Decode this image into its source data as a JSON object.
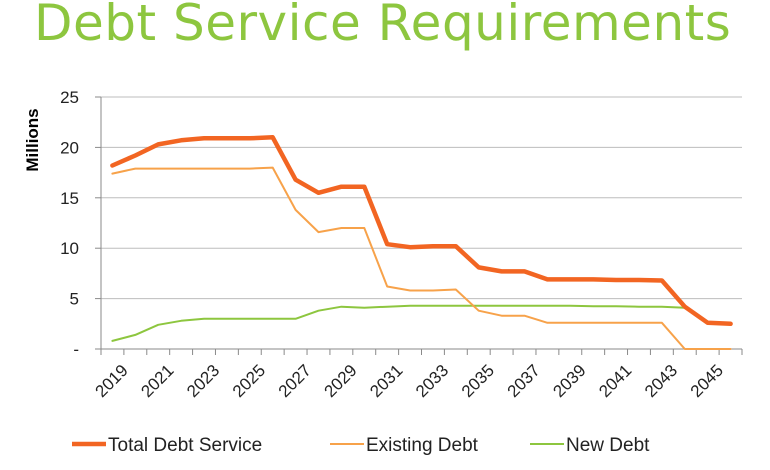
{
  "chart_data": {
    "type": "line",
    "title": "Debt Service Requirements",
    "xlabel": "",
    "ylabel": "Millions",
    "ylim": [
      0,
      25
    ],
    "yticks": [
      {
        "value": 0,
        "label": "-"
      },
      {
        "value": 5,
        "label": "5"
      },
      {
        "value": 10,
        "label": "10"
      },
      {
        "value": 15,
        "label": "15"
      },
      {
        "value": 20,
        "label": "20"
      },
      {
        "value": 25,
        "label": "25"
      }
    ],
    "x": [
      2019,
      2020,
      2021,
      2022,
      2023,
      2024,
      2025,
      2026,
      2027,
      2028,
      2029,
      2030,
      2031,
      2032,
      2033,
      2034,
      2035,
      2036,
      2037,
      2038,
      2039,
      2040,
      2041,
      2042,
      2043,
      2044,
      2045,
      2046
    ],
    "xtick_labels": [
      "2019",
      "2021",
      "2023",
      "2025",
      "2027",
      "2029",
      "2031",
      "2033",
      "2035",
      "2037",
      "2039",
      "2041",
      "2043",
      "2045"
    ],
    "grid": true,
    "legend_position": "bottom",
    "series": [
      {
        "name": "Total Debt Service",
        "color": "#f26522",
        "values": [
          18.2,
          19.2,
          20.3,
          20.7,
          20.9,
          20.9,
          20.9,
          21.0,
          16.8,
          15.5,
          16.1,
          16.1,
          10.4,
          10.1,
          10.2,
          10.2,
          8.1,
          7.7,
          7.7,
          6.9,
          6.9,
          6.9,
          6.85,
          6.85,
          6.8,
          4.2,
          2.6,
          2.5
        ]
      },
      {
        "name": "Existing Debt",
        "color": "#f7a24a",
        "values": [
          17.4,
          17.9,
          17.9,
          17.9,
          17.9,
          17.9,
          17.9,
          18.0,
          13.8,
          11.6,
          12.0,
          12.0,
          6.2,
          5.8,
          5.8,
          5.9,
          3.8,
          3.3,
          3.3,
          2.6,
          2.6,
          2.6,
          2.6,
          2.6,
          2.6,
          0.0,
          0.0,
          0.0
        ]
      },
      {
        "name": "New Debt",
        "color": "#8dc63f",
        "values": [
          0.8,
          1.4,
          2.4,
          2.8,
          3.0,
          3.0,
          3.0,
          3.0,
          3.0,
          3.8,
          4.2,
          4.1,
          4.2,
          4.3,
          4.3,
          4.3,
          4.3,
          4.3,
          4.3,
          4.3,
          4.3,
          4.25,
          4.25,
          4.2,
          4.2,
          4.1,
          2.6,
          2.5
        ]
      }
    ]
  }
}
